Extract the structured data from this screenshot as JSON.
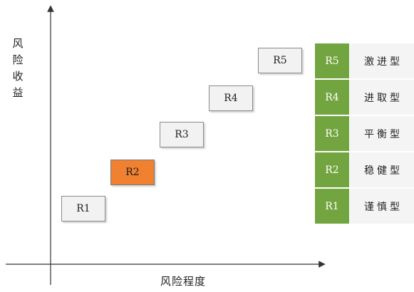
{
  "axes": {
    "y_label": "风险收益",
    "x_label": "风险程度"
  },
  "steps": [
    {
      "label": "R1",
      "highlighted": false
    },
    {
      "label": "R2",
      "highlighted": true
    },
    {
      "label": "R3",
      "highlighted": false
    },
    {
      "label": "R4",
      "highlighted": false
    },
    {
      "label": "R5",
      "highlighted": false
    }
  ],
  "legend": [
    {
      "level": "R5",
      "type": "激进型"
    },
    {
      "level": "R4",
      "type": "进取型"
    },
    {
      "level": "R3",
      "type": "平衡型"
    },
    {
      "level": "R2",
      "type": "稳健型"
    },
    {
      "level": "R1",
      "type": "谨慎型"
    }
  ],
  "colors": {
    "highlight": "#ef8130",
    "legend_level_bg": "#72a43f",
    "box_bg": "#f2f2f2",
    "legend_type_bg": "#f4f4f4"
  }
}
